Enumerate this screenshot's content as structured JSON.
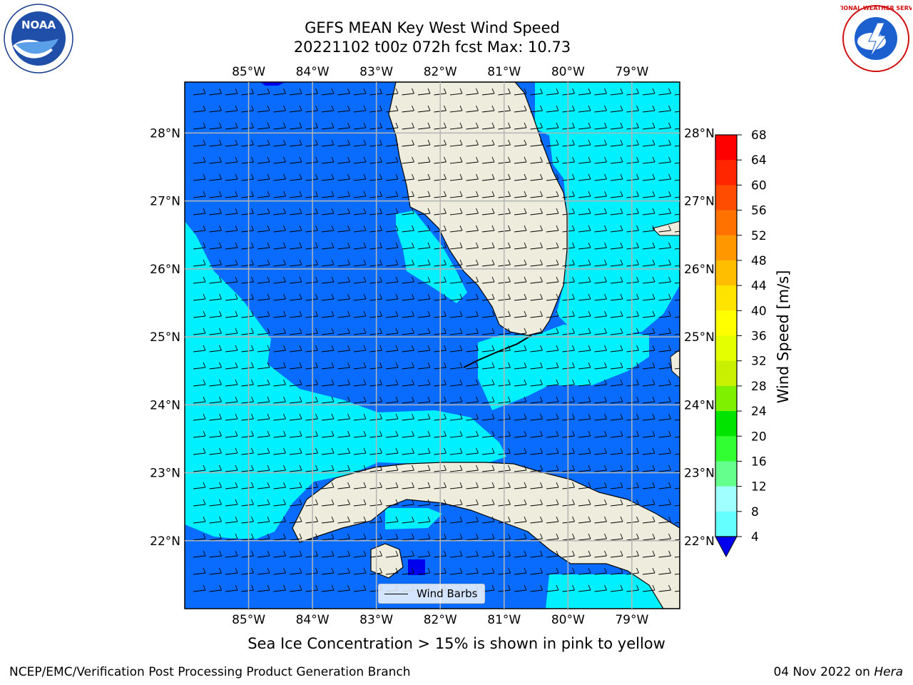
{
  "header": {
    "title_line1": "GEFS MEAN Key West Wind Speed",
    "title_line2": "20221102 t00z 072h fcst   Max: 10.73"
  },
  "logos": {
    "left": {
      "text": "NOAA",
      "name": "noaa-logo"
    },
    "right": {
      "text": "NATIONAL WEATHER SERVICE",
      "name": "nws-logo"
    }
  },
  "map": {
    "lon_labels": [
      "85°W",
      "84°W",
      "83°W",
      "82°W",
      "81°W",
      "80°W",
      "79°W"
    ],
    "lon_values": [
      -85,
      -84,
      -83,
      -82,
      -81,
      -80,
      -79
    ],
    "lat_labels": [
      "28°N",
      "27°N",
      "26°N",
      "25°N",
      "24°N",
      "23°N",
      "22°N"
    ],
    "lat_values": [
      28,
      27,
      26,
      25,
      24,
      23,
      22
    ],
    "extent": {
      "lon_min": -86.0,
      "lon_max": -78.25,
      "lat_min": 21.0,
      "lat_max": 28.75
    },
    "legend_label": "Wind Barbs",
    "colors": {
      "land": "#eeecdc",
      "wind_4_8": "#0a6cff",
      "wind_8_12": "#00f0ff",
      "wind_below_4": "#0000ee",
      "grid": "#b4b4b4",
      "coast": "#000000"
    }
  },
  "colorbar": {
    "label": "Wind Speed [m/s]",
    "ticks": [
      "68",
      "64",
      "60",
      "56",
      "52",
      "48",
      "44",
      "40",
      "36",
      "32",
      "28",
      "24",
      "20",
      "16",
      "12",
      "8",
      "4"
    ],
    "colors": [
      "#ff0000",
      "#ff2600",
      "#ff4c00",
      "#ff7200",
      "#ff9800",
      "#ffbe00",
      "#ffe400",
      "#ffff00",
      "#e4ff00",
      "#c8f000",
      "#7ef000",
      "#00e400",
      "#32ff32",
      "#64ff8c",
      "#a0ffff",
      "#64ffff",
      "#00ffff",
      "#0064ff",
      "#0000ee"
    ]
  },
  "footer": {
    "caption": "Sea Ice Concentration > 15% is shown in pink to yellow",
    "left": "NCEP/EMC/Verification Post Processing Product Generation Branch",
    "right_prefix": "04 Nov 2022 on ",
    "right_host": "Hera"
  }
}
